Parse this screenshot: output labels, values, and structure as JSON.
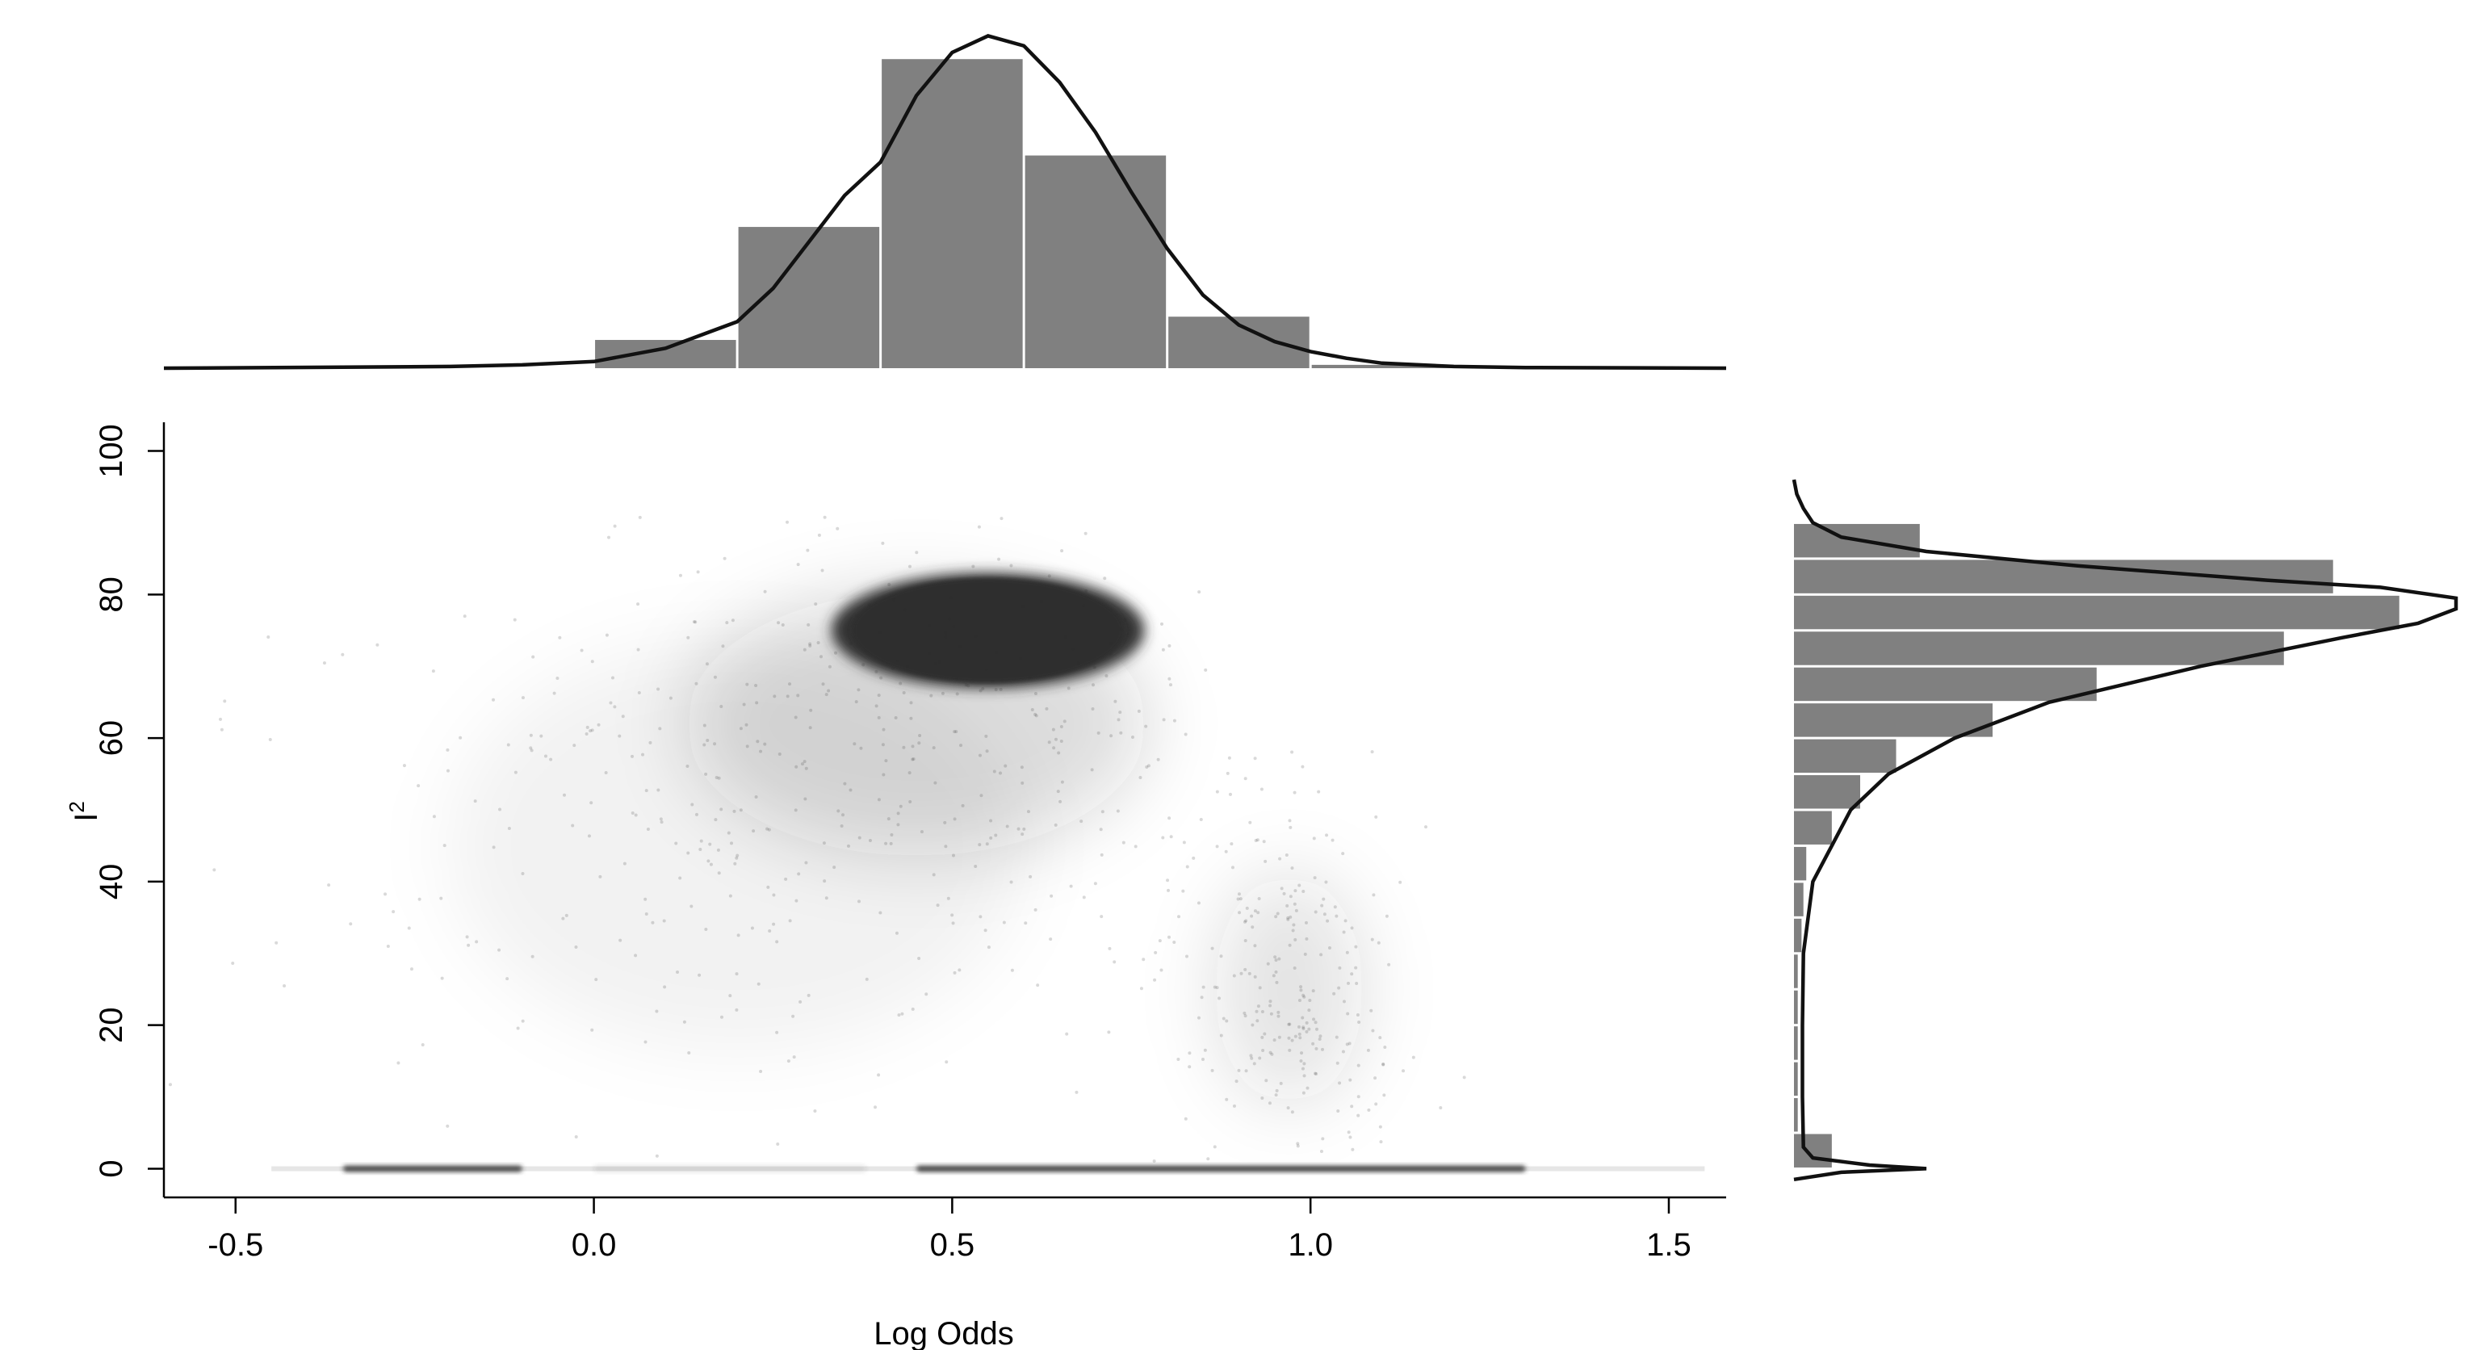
{
  "chart_data": [
    {
      "panel": "main",
      "type": "scatter",
      "xlabel": "Log Odds",
      "ylabel": "I",
      "ylabel_superscript": "2",
      "xlim": [
        -0.6,
        1.58
      ],
      "ylim": [
        -4,
        104
      ],
      "x_ticks": [
        -0.5,
        0.0,
        0.5,
        1.0,
        1.5
      ],
      "x_tick_labels": [
        "-0.5",
        "0.0",
        "0.5",
        "1.0",
        "1.5"
      ],
      "y_ticks": [
        0,
        20,
        40,
        60,
        80,
        100
      ],
      "y_tick_labels": [
        "0",
        "20",
        "40",
        "60",
        "80",
        "100"
      ],
      "grid": false,
      "point_color": "#2e2e2e",
      "density_regions": [
        {
          "cx": 0.55,
          "cy": 75,
          "sx": 0.19,
          "sy": 7,
          "weight": "very high"
        },
        {
          "cx": 0.45,
          "cy": 62,
          "sx": 0.28,
          "sy": 16,
          "weight": "medium"
        },
        {
          "cx": 0.97,
          "cy": 25,
          "sx": 0.09,
          "sy": 14,
          "weight": "low"
        },
        {
          "cx": 0.2,
          "cy": 45,
          "sx": 0.35,
          "sy": 25,
          "weight": "very low"
        }
      ],
      "zero_band": [
        {
          "x_from": -0.35,
          "x_to": -0.1,
          "y": 0,
          "weight": "high"
        },
        {
          "x_from": 0.0,
          "x_to": 0.38,
          "y": 0,
          "weight": "very low"
        },
        {
          "x_from": 0.45,
          "x_to": 1.3,
          "y": 0,
          "weight": "high"
        }
      ]
    },
    {
      "panel": "top-marginal",
      "type": "bar",
      "orientation": "vertical",
      "bin_edges": [
        0.0,
        0.2,
        0.4,
        0.6,
        0.8,
        1.0,
        1.2
      ],
      "values": [
        0.085,
        0.425,
        0.93,
        0.64,
        0.155,
        0.01
      ],
      "density_curve": {
        "x": [
          -0.6,
          -0.2,
          -0.1,
          0.0,
          0.1,
          0.2,
          0.25,
          0.3,
          0.35,
          0.4,
          0.45,
          0.5,
          0.55,
          0.6,
          0.65,
          0.7,
          0.75,
          0.8,
          0.85,
          0.9,
          0.95,
          1.0,
          1.05,
          1.1,
          1.2,
          1.3,
          1.58
        ],
        "y": [
          0,
          0.005,
          0.01,
          0.02,
          0.06,
          0.14,
          0.24,
          0.38,
          0.52,
          0.62,
          0.82,
          0.95,
          1.0,
          0.97,
          0.86,
          0.71,
          0.53,
          0.36,
          0.22,
          0.13,
          0.08,
          0.05,
          0.03,
          0.015,
          0.005,
          0.002,
          0
        ]
      },
      "fill_color": "#808080"
    },
    {
      "panel": "right-marginal",
      "type": "bar",
      "orientation": "horizontal",
      "bin_edges": [
        0,
        5,
        10,
        15,
        20,
        25,
        30,
        35,
        40,
        45,
        50,
        55,
        60,
        65,
        70,
        75,
        80,
        85,
        90
      ],
      "values": [
        0.04,
        0.004,
        0.004,
        0.004,
        0.004,
        0.004,
        0.008,
        0.01,
        0.013,
        0.04,
        0.07,
        0.108,
        0.21,
        0.32,
        0.518,
        0.64,
        0.57,
        0.133
      ],
      "density_curve": {
        "y": [
          -1.5,
          -0.5,
          0,
          0.5,
          1.5,
          3,
          10,
          20,
          30,
          40,
          45,
          50,
          55,
          60,
          65,
          70,
          74,
          76,
          78,
          79.5,
          81,
          82,
          84,
          86,
          88,
          90,
          92,
          94,
          96
        ],
        "x": [
          0,
          0.05,
          0.14,
          0.08,
          0.02,
          0.01,
          0.009,
          0.009,
          0.01,
          0.02,
          0.04,
          0.06,
          0.1,
          0.17,
          0.27,
          0.43,
          0.58,
          0.66,
          0.7,
          0.7,
          0.62,
          0.5,
          0.3,
          0.14,
          0.05,
          0.02,
          0.01,
          0.003,
          0
        ]
      },
      "fill_color": "#808080"
    }
  ]
}
